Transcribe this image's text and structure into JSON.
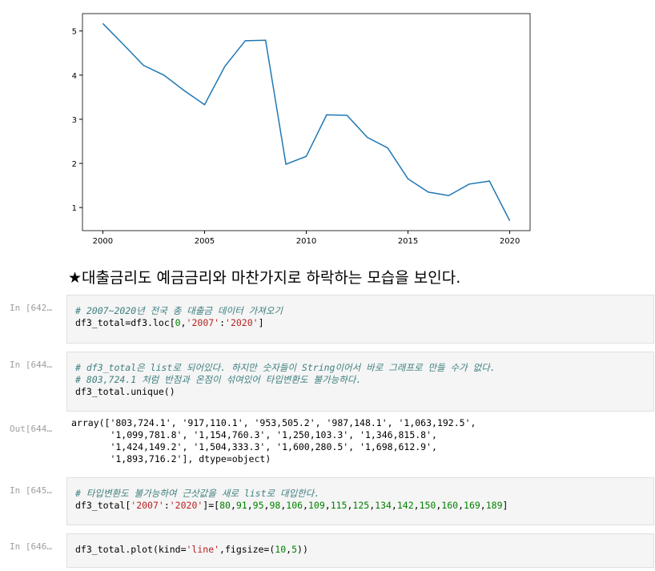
{
  "chart_data": {
    "type": "line",
    "x": [
      2000,
      2001,
      2002,
      2003,
      2004,
      2005,
      2006,
      2007,
      2008,
      2009,
      2010,
      2011,
      2012,
      2013,
      2014,
      2015,
      2016,
      2017,
      2018,
      2019,
      2020
    ],
    "values": [
      5.17,
      4.7,
      4.22,
      4.0,
      3.65,
      3.33,
      4.2,
      4.78,
      4.79,
      1.98,
      2.16,
      3.1,
      3.09,
      2.59,
      2.35,
      1.65,
      1.35,
      1.27,
      1.53,
      1.6,
      0.7
    ],
    "color": "#1f77b4",
    "xlim": [
      1999,
      2021
    ],
    "xticks": [
      2000,
      2005,
      2010,
      2015,
      2020
    ],
    "ylim": [
      0.4765,
      5.3935
    ],
    "yticks": [
      1,
      2,
      3,
      4,
      5
    ]
  },
  "notebook": {
    "markdown": "★대출금리도 예금금리와 마찬가지로 하락하는 모습을 보인다.",
    "cells": [
      {
        "prompt": "In [642…",
        "lines": [
          "# 2007~2020년 전국 총 대출금 데이터 가져오기",
          "df3_total=df3.loc[0,'2007':'2020']"
        ]
      },
      {
        "prompt": "In [644…",
        "lines": [
          "# df3_total은 list로 되어있다. 하지만 숫자들이 String이어서 바로 그래프로 만들 수가 없다.",
          "# 803,724.1 처럼 반점과 온점이 섞여있어 타입변환도 불가능하다.",
          "df3_total.unique()"
        ],
        "output": {
          "prompt": "Out[644…",
          "lines": [
            "array(['803,724.1', '917,110.1', '953,505.2', '987,148.1', '1,063,192.5',",
            "       '1,099,781.8', '1,154,760.3', '1,250,103.3', '1,346,815.8',",
            "       '1,424,149.2', '1,504,333.3', '1,600,280.5', '1,698,612.9',",
            "       '1,893,716.2'], dtype=object)"
          ]
        }
      },
      {
        "prompt": "In [645…",
        "lines": [
          "# 타입변환도 불가능하여 근삿값을 새로 list로 대입한다.",
          "df3_total['2007':'2020']=[80,91,95,98,106,109,115,125,134,142,150,160,169,189]"
        ]
      },
      {
        "prompt": "In [646…",
        "lines": [
          "df3_total.plot(kind='line',figsize=(10,5))"
        ]
      }
    ]
  }
}
